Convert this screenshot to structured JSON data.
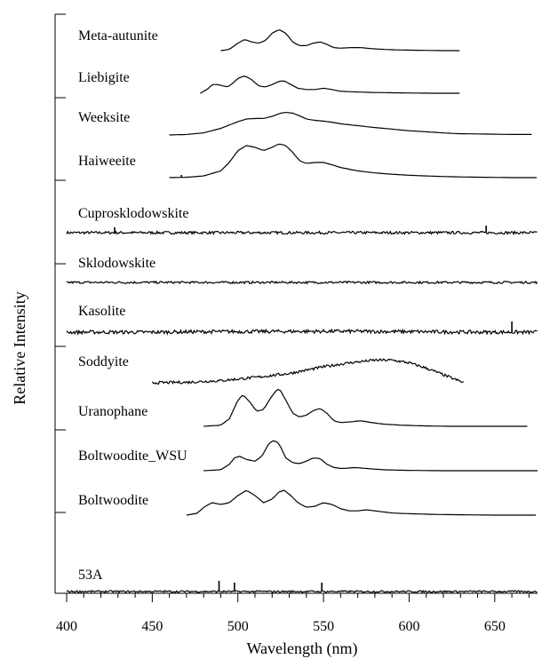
{
  "chart_data": {
    "type": "line",
    "title": "",
    "xlabel": "Wavelength (nm)",
    "ylabel": "Relative Intensity",
    "xlim": [
      400,
      675
    ],
    "x_ticks": [
      400,
      450,
      500,
      550,
      600,
      650
    ],
    "grid": false,
    "legend": "none",
    "series": [
      {
        "name": "Meta-autunite",
        "x": [
          490,
          495,
          500,
          504,
          508,
          512,
          516,
          520,
          524,
          528,
          532,
          536,
          540,
          544,
          548,
          552,
          556,
          560,
          566,
          572,
          578,
          585,
          592,
          600,
          610,
          620,
          630
        ],
        "y": [
          0.0,
          0.05,
          0.3,
          0.45,
          0.35,
          0.3,
          0.4,
          0.7,
          0.85,
          0.7,
          0.35,
          0.2,
          0.2,
          0.3,
          0.35,
          0.25,
          0.12,
          0.1,
          0.12,
          0.12,
          0.08,
          0.05,
          0.03,
          0.02,
          0.01,
          0.0,
          0.0
        ]
      },
      {
        "name": "Liebigite",
        "x": [
          478,
          482,
          485,
          488,
          491,
          494,
          497,
          500,
          504,
          508,
          512,
          516,
          520,
          524,
          527,
          531,
          535,
          540,
          545,
          550,
          555,
          560,
          570,
          580,
          590,
          600,
          615,
          630
        ],
        "y": [
          0.0,
          0.15,
          0.35,
          0.35,
          0.3,
          0.25,
          0.4,
          0.6,
          0.7,
          0.55,
          0.3,
          0.25,
          0.35,
          0.48,
          0.5,
          0.35,
          0.2,
          0.15,
          0.15,
          0.2,
          0.15,
          0.08,
          0.05,
          0.03,
          0.02,
          0.01,
          0.0,
          0.0
        ]
      },
      {
        "name": "Weeksite",
        "x": [
          460,
          470,
          480,
          490,
          500,
          505,
          510,
          515,
          520,
          525,
          528,
          532,
          536,
          540,
          545,
          550,
          555,
          560,
          570,
          580,
          590,
          600,
          610,
          620,
          628,
          640,
          650,
          660,
          672
        ],
        "y": [
          0.0,
          0.02,
          0.08,
          0.25,
          0.5,
          0.6,
          0.62,
          0.62,
          0.7,
          0.82,
          0.85,
          0.82,
          0.72,
          0.6,
          0.55,
          0.52,
          0.48,
          0.42,
          0.35,
          0.28,
          0.22,
          0.16,
          0.12,
          0.08,
          0.05,
          0.04,
          0.03,
          0.02,
          0.02
        ]
      },
      {
        "name": "Haiweeite",
        "x": [
          460,
          470,
          480,
          490,
          495,
          500,
          505,
          510,
          515,
          520,
          524,
          528,
          532,
          536,
          540,
          545,
          550,
          555,
          560,
          570,
          580,
          590,
          600,
          615,
          630,
          645,
          660,
          675
        ],
        "y": [
          0.0,
          0.01,
          0.05,
          0.2,
          0.45,
          0.8,
          0.95,
          0.9,
          0.8,
          0.9,
          1.0,
          0.95,
          0.75,
          0.5,
          0.42,
          0.45,
          0.45,
          0.38,
          0.3,
          0.2,
          0.14,
          0.1,
          0.07,
          0.04,
          0.02,
          0.01,
          0.0,
          0.0
        ]
      },
      {
        "name": "Cuprosklodowskite",
        "x": [
          400,
          675
        ],
        "y": [
          0,
          0
        ]
      },
      {
        "name": "Sklodowskite",
        "x": [
          400,
          675
        ],
        "y": [
          0,
          0
        ]
      },
      {
        "name": "Kasolite",
        "x": [
          400,
          450,
          480,
          520,
          560,
          600,
          640,
          675
        ],
        "y": [
          0,
          0.0,
          0.05,
          0.08,
          0.1,
          0.06,
          0.0,
          0.0
        ]
      },
      {
        "name": "Soddyite",
        "x": [
          450,
          470,
          490,
          510,
          530,
          550,
          565,
          580,
          590,
          600,
          610,
          620,
          628,
          632
        ],
        "y": [
          0.0,
          0.02,
          0.08,
          0.2,
          0.35,
          0.6,
          0.75,
          0.85,
          0.85,
          0.75,
          0.55,
          0.3,
          0.1,
          0.0
        ]
      },
      {
        "name": "Uranophane",
        "x": [
          480,
          490,
          495,
          500,
          503,
          507,
          511,
          515,
          519,
          523,
          525,
          528,
          532,
          536,
          540,
          544,
          548,
          552,
          556,
          560,
          566,
          572,
          578,
          585,
          595,
          610,
          625,
          640,
          655,
          670
        ],
        "y": [
          0.0,
          0.03,
          0.2,
          0.7,
          0.85,
          0.65,
          0.4,
          0.45,
          0.75,
          1.0,
          0.95,
          0.7,
          0.35,
          0.25,
          0.3,
          0.42,
          0.48,
          0.35,
          0.15,
          0.1,
          0.12,
          0.15,
          0.1,
          0.06,
          0.03,
          0.01,
          0.0,
          0.0,
          0.0,
          0.0
        ]
      },
      {
        "name": "Boltwoodite_WSU",
        "x": [
          480,
          490,
          495,
          498,
          501,
          505,
          510,
          514,
          518,
          521,
          524,
          528,
          532,
          536,
          540,
          544,
          548,
          552,
          556,
          560,
          564,
          568,
          575,
          585,
          600,
          620,
          640,
          660,
          675
        ],
        "y": [
          0.0,
          0.03,
          0.2,
          0.4,
          0.45,
          0.35,
          0.3,
          0.45,
          0.85,
          0.95,
          0.85,
          0.4,
          0.25,
          0.22,
          0.3,
          0.4,
          0.38,
          0.2,
          0.1,
          0.07,
          0.08,
          0.1,
          0.07,
          0.03,
          0.01,
          0.0,
          0.0,
          0.0,
          0.0
        ]
      },
      {
        "name": "Boltwoodite",
        "x": [
          470,
          476,
          481,
          485,
          490,
          495,
          500,
          505,
          510,
          515,
          520,
          524,
          527,
          531,
          535,
          540,
          545,
          550,
          555,
          560,
          565,
          570,
          575,
          580,
          590,
          600,
          615,
          630,
          650,
          675
        ],
        "y": [
          0.0,
          0.05,
          0.25,
          0.35,
          0.3,
          0.35,
          0.55,
          0.7,
          0.55,
          0.35,
          0.45,
          0.65,
          0.7,
          0.55,
          0.35,
          0.22,
          0.25,
          0.35,
          0.3,
          0.18,
          0.12,
          0.12,
          0.15,
          0.12,
          0.06,
          0.04,
          0.02,
          0.01,
          0.0,
          0.0
        ]
      },
      {
        "name": "53A",
        "x": [
          400,
          675
        ],
        "y": [
          0,
          0
        ]
      }
    ]
  }
}
